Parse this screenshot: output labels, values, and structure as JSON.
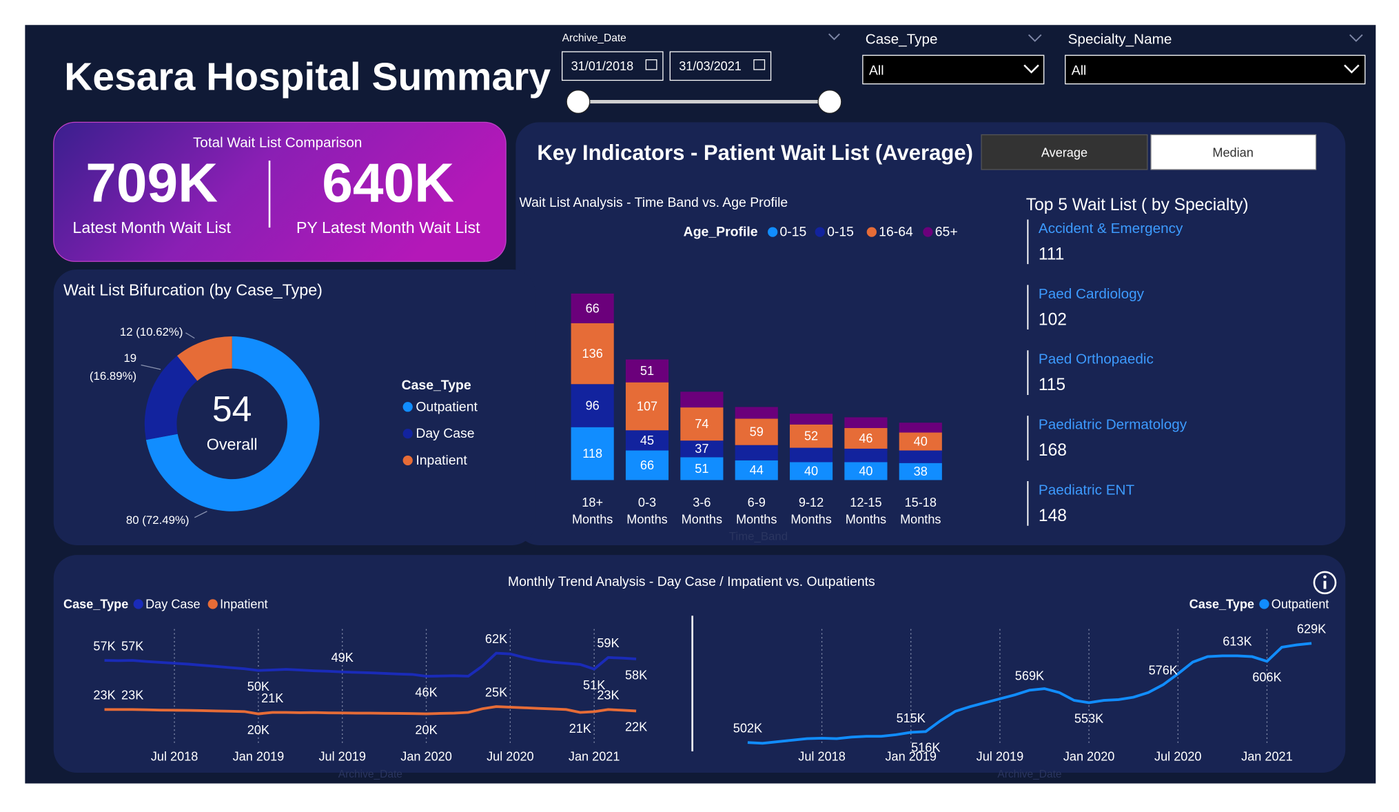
{
  "header": {
    "title": "Kesara Hospital Summary"
  },
  "filters": {
    "archive_date": {
      "label": "Archive_Date",
      "start": "31/01/2018",
      "end": "31/03/2021"
    },
    "case_type": {
      "label": "Case_Type",
      "value": "All"
    },
    "specialty_name": {
      "label": "Specialty_Name",
      "value": "All"
    }
  },
  "kpi": {
    "title": "Total Wait List Comparison",
    "items": [
      {
        "value": "709K",
        "label": "Latest Month Wait List"
      },
      {
        "value": "640K",
        "label": "PY Latest Month Wait List"
      }
    ]
  },
  "key_indicators": {
    "title": "Key Indicators - Patient Wait List (Average)",
    "buttons": [
      "Average",
      "Median"
    ]
  },
  "top5": {
    "title": "Top 5 Wait List ( by Specialty)",
    "items": [
      {
        "name": "Accident & Emergency",
        "value": 111
      },
      {
        "name": "Paed Cardiology",
        "value": 102
      },
      {
        "name": "Paed Orthopaedic",
        "value": 115
      },
      {
        "name": "Paediatric Dermatology",
        "value": 168
      },
      {
        "name": "Paediatric ENT",
        "value": 148
      }
    ]
  },
  "trend": {
    "title": "Monthly Trend Analysis - Day Case / Impatient vs. Outpatients"
  },
  "chart_data": [
    {
      "type": "donut",
      "title": "Wait List Bifurcation (by Case_Type)",
      "center_value": 54,
      "center_label": "Overall",
      "legend_title": "Case_Type",
      "categories": [
        "Outpatient",
        "Day Case",
        "Inpatient"
      ],
      "values": [
        80,
        19,
        12
      ],
      "value_labels": [
        "80 (72.49%)",
        "19 (16.89%)",
        "12 (10.62%)"
      ],
      "colors": [
        "#118dff",
        "#12239e",
        "#e66c37"
      ]
    },
    {
      "type": "bar",
      "stacked": true,
      "title": "Wait List Analysis - Time Band vs. Age Profile",
      "legend_title": "Age_Profile",
      "x_label": "Time_Band",
      "categories": [
        "18+ Months",
        "0-3 Months",
        "3-6 Months",
        "6-9 Months",
        "9-12 Months",
        "12-15 Months",
        "15-18 Months"
      ],
      "series": [
        {
          "name": "0-15",
          "color": "#118dff",
          "values": [
            118,
            66,
            51,
            44,
            40,
            40,
            38
          ]
        },
        {
          "name": "0-15",
          "color": "#12239e",
          "values": [
            96,
            45,
            37,
            34,
            32,
            30,
            28
          ]
        },
        {
          "name": "16-64",
          "color": "#e66c37",
          "values": [
            136,
            107,
            74,
            59,
            52,
            46,
            40
          ]
        },
        {
          "name": "65+",
          "color": "#6b007b",
          "values": [
            66,
            51,
            35,
            26,
            24,
            24,
            22
          ]
        }
      ]
    },
    {
      "type": "line",
      "legend_title": "Case_Type",
      "x_label": "Archive_Date",
      "x": [
        "2018-02",
        "2018-03",
        "2018-04",
        "2018-05",
        "2018-06",
        "2018-07",
        "2018-08",
        "2018-09",
        "2018-10",
        "2018-11",
        "2018-12",
        "2019-01",
        "2019-02",
        "2019-03",
        "2019-04",
        "2019-05",
        "2019-06",
        "2019-07",
        "2019-08",
        "2019-09",
        "2019-10",
        "2019-11",
        "2019-12",
        "2020-01",
        "2020-02",
        "2020-03",
        "2020-04",
        "2020-05",
        "2020-06",
        "2020-07",
        "2020-08",
        "2020-09",
        "2020-10",
        "2020-11",
        "2020-12",
        "2021-01",
        "2021-02",
        "2021-03",
        "2021-04"
      ],
      "xlim": [
        "2018-02",
        "2021-04"
      ],
      "xticks": [
        {
          "value": "2018-07",
          "label": "Jul 2018"
        },
        {
          "value": "2019-01",
          "label": "Jan 2019"
        },
        {
          "value": "2019-07",
          "label": "Jul 2019"
        },
        {
          "value": "2020-01",
          "label": "Jan 2020"
        },
        {
          "value": "2020-07",
          "label": "Jul 2020"
        },
        {
          "value": "2021-01",
          "label": "Jan 2021"
        }
      ],
      "series": [
        {
          "name": "Day Case",
          "color": "#1a2bb8",
          "values": [
            57000,
            56800,
            57000,
            56200,
            55600,
            55000,
            54400,
            53600,
            52800,
            52000,
            51200,
            50000,
            50400,
            50800,
            50300,
            49800,
            49500,
            49000,
            48700,
            48400,
            48000,
            47600,
            47300,
            46000,
            46200,
            46400,
            46100,
            53000,
            62000,
            61500,
            59000,
            57000,
            55800,
            55000,
            54200,
            51000,
            59000,
            58600,
            58000
          ],
          "value_labels": [
            "57K",
            null,
            "57K",
            null,
            null,
            null,
            null,
            null,
            null,
            null,
            null,
            "50K",
            null,
            null,
            null,
            null,
            null,
            "49K",
            null,
            null,
            null,
            null,
            null,
            "46K",
            null,
            null,
            null,
            null,
            "62K",
            null,
            null,
            null,
            null,
            null,
            null,
            "51K",
            "59K",
            null,
            "58K"
          ]
        },
        {
          "name": "Inpatient",
          "color": "#e66c37",
          "values": [
            23000,
            23000,
            23000,
            22800,
            22600,
            22500,
            22400,
            22200,
            22000,
            21800,
            21600,
            20000,
            21000,
            21000,
            20800,
            20900,
            20700,
            20600,
            20500,
            20500,
            20400,
            20300,
            20200,
            20000,
            20300,
            20500,
            21000,
            23500,
            25000,
            24600,
            24200,
            23800,
            23400,
            23000,
            21000,
            21500,
            23000,
            22500,
            22000
          ],
          "value_labels": [
            "23K",
            null,
            "23K",
            null,
            null,
            null,
            null,
            null,
            null,
            null,
            null,
            "20K",
            "21K",
            null,
            null,
            null,
            null,
            null,
            null,
            null,
            null,
            null,
            null,
            "20K",
            null,
            null,
            null,
            null,
            "25K",
            null,
            null,
            null,
            null,
            null,
            "21K",
            null,
            "23K",
            null,
            "22K"
          ]
        }
      ]
    },
    {
      "type": "line",
      "legend_title": "Case_Type",
      "x_label": "Archive_Date",
      "x": [
        "2018-02",
        "2018-03",
        "2018-04",
        "2018-05",
        "2018-06",
        "2018-07",
        "2018-08",
        "2018-09",
        "2018-10",
        "2018-11",
        "2018-12",
        "2019-01",
        "2019-02",
        "2019-03",
        "2019-04",
        "2019-05",
        "2019-06",
        "2019-07",
        "2019-08",
        "2019-09",
        "2019-10",
        "2019-11",
        "2019-12",
        "2020-01",
        "2020-02",
        "2020-03",
        "2020-04",
        "2020-05",
        "2020-06",
        "2020-07",
        "2020-08",
        "2020-09",
        "2020-10",
        "2020-11",
        "2020-12",
        "2021-01",
        "2021-02",
        "2021-03",
        "2021-04"
      ],
      "xlim": [
        "2018-02",
        "2021-04"
      ],
      "xticks": [
        {
          "value": "2018-07",
          "label": "Jul 2018"
        },
        {
          "value": "2019-01",
          "label": "Jan 2019"
        },
        {
          "value": "2019-07",
          "label": "Jul 2019"
        },
        {
          "value": "2020-01",
          "label": "Jan 2020"
        },
        {
          "value": "2020-07",
          "label": "Jul 2020"
        },
        {
          "value": "2021-01",
          "label": "Jan 2021"
        }
      ],
      "series": [
        {
          "name": "Outpatient",
          "color": "#118dff",
          "values": [
            502000,
            501000,
            503000,
            505000,
            507000,
            507500,
            507000,
            509000,
            510000,
            510000,
            512000,
            515000,
            516000,
            530000,
            542000,
            548000,
            553000,
            558000,
            563000,
            569000,
            571000,
            566000,
            556000,
            553000,
            556000,
            557000,
            560000,
            566000,
            576000,
            590000,
            605000,
            612000,
            613000,
            613000,
            612000,
            606000,
            624000,
            627000,
            629000
          ],
          "value_labels": [
            "502K",
            null,
            null,
            null,
            null,
            null,
            null,
            null,
            null,
            null,
            null,
            "515K",
            "516K",
            null,
            null,
            null,
            null,
            null,
            null,
            "569K",
            null,
            null,
            null,
            "553K",
            null,
            null,
            null,
            null,
            "576K",
            null,
            null,
            null,
            null,
            "613K",
            null,
            "606K",
            null,
            null,
            "629K"
          ]
        }
      ]
    }
  ]
}
